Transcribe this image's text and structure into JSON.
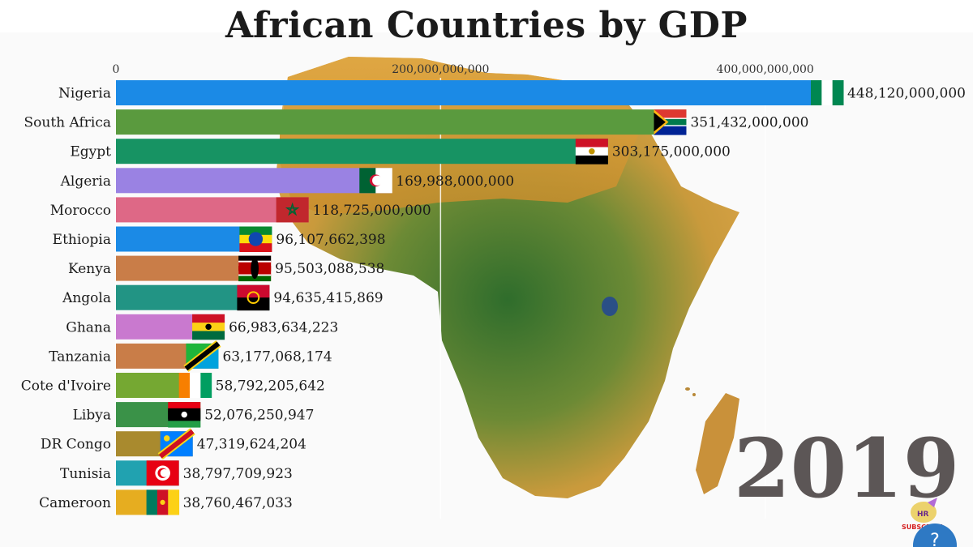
{
  "header": {
    "title": "African Countries by GDP"
  },
  "overlay": {
    "year": "2019",
    "subscribe_label": "SUBSCRIBE",
    "help_label": "?"
  },
  "colors": {
    "background": "#fafafa",
    "gridline": "#ffffff",
    "label_text": "#1b1b1b",
    "year_text": "#5c5656"
  },
  "chart_data": {
    "type": "bar",
    "orientation": "horizontal",
    "title": "African Countries by GDP",
    "x_ticks": [
      0,
      200000000000,
      400000000000
    ],
    "x_tick_labels": [
      "0",
      "200,000,000,000",
      "400,000,000,000"
    ],
    "xlim": [
      0,
      448120000000
    ],
    "grid": true,
    "categories": [
      "Nigeria",
      "South Africa",
      "Egypt",
      "Algeria",
      "Morocco",
      "Ethiopia",
      "Kenya",
      "Angola",
      "Ghana",
      "Tanzania",
      "Cote d'Ivoire",
      "Libya",
      "DR Congo",
      "Tunisia",
      "Cameroon"
    ],
    "values": [
      448120000000,
      351432000000,
      303175000000,
      169988000000,
      118725000000,
      96107662398,
      95503088538,
      94635415869,
      66983634223,
      63177068174,
      58792205642,
      52076250947,
      47319624204,
      38797709923,
      38760467033
    ],
    "value_labels": [
      "448,120,000,000",
      "351,432,000,000",
      "303,175,000,000",
      "169,988,000,000",
      "118,725,000,000",
      "96,107,662,398",
      "95,503,088,538",
      "94,635,415,869",
      "66,983,634,223",
      "63,177,068,174",
      "58,792,205,642",
      "52,076,250,947",
      "47,319,624,204",
      "38,797,709,923",
      "38,760,467,033"
    ],
    "colors": [
      "#1b8ae6",
      "#5a9a3e",
      "#179363",
      "#9a82e3",
      "#de6886",
      "#1b8ae6",
      "#c97d48",
      "#229484",
      "#c979cf",
      "#c97d48",
      "#75a832",
      "#3a9248",
      "#a98a2e",
      "#21a2b0",
      "#e6ad20"
    ],
    "flags": [
      "nigeria-flag",
      "south-africa-flag",
      "egypt-flag",
      "algeria-flag",
      "morocco-flag",
      "ethiopia-flag",
      "kenya-flag",
      "angola-flag",
      "ghana-flag",
      "tanzania-flag",
      "cote-divoire-flag",
      "libya-flag",
      "dr-congo-flag",
      "tunisia-flag",
      "cameroon-flag"
    ],
    "year": "2019"
  }
}
